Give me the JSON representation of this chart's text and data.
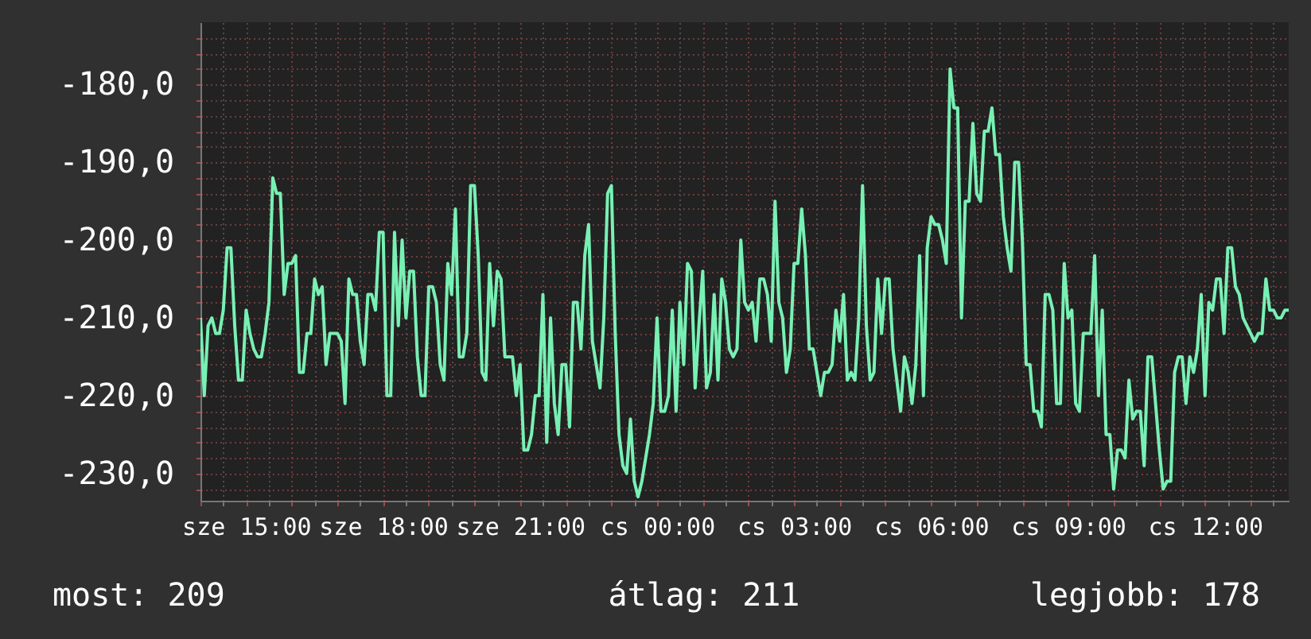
{
  "chart_data": {
    "type": "line",
    "color": "#78f0b4",
    "categories": [
      null,
      null,
      null,
      null,
      null,
      null,
      null,
      null,
      null,
      null,
      null,
      null,
      "sze 15:00",
      null,
      null,
      null,
      null,
      null,
      null,
      null,
      null,
      null,
      null,
      null,
      null,
      null,
      null,
      null,
      null,
      null,
      null,
      null,
      null,
      null,
      null,
      null,
      null,
      null,
      null,
      null,
      null,
      null,
      null,
      null,
      null,
      null,
      null,
      null,
      "sze 18:00",
      null,
      null,
      null,
      null,
      null,
      null,
      null,
      null,
      null,
      null,
      null,
      null,
      null,
      null,
      null,
      null,
      null,
      null,
      null,
      null,
      null,
      null,
      null,
      null,
      null,
      null,
      null,
      null,
      null,
      null,
      null,
      null,
      null,
      null,
      null,
      "sze 21:00",
      null,
      null,
      null,
      null,
      null,
      null,
      null,
      null,
      null,
      null,
      null,
      null,
      null,
      null,
      null,
      null,
      null,
      null,
      null,
      null,
      null,
      null,
      null,
      null,
      null,
      null,
      null,
      null,
      null,
      null,
      null,
      null,
      null,
      null,
      null,
      "cs 00:00",
      null,
      null,
      null,
      null,
      null,
      null,
      null,
      null,
      null,
      null,
      null,
      null,
      null,
      null,
      null,
      null,
      null,
      null,
      null,
      null,
      null,
      null,
      null,
      null,
      null,
      null,
      null,
      null,
      null,
      null,
      null,
      null,
      null,
      null,
      null,
      "cs 03:00",
      null,
      null,
      null,
      null,
      null,
      null,
      null,
      null,
      null,
      null,
      null,
      null,
      null,
      null,
      null,
      null,
      null,
      null,
      null,
      null,
      null,
      null,
      null,
      null,
      null,
      null,
      null,
      null,
      null,
      null,
      null,
      null,
      null,
      null,
      null,
      "cs 06:00",
      null,
      null,
      null,
      null,
      null,
      null,
      null,
      null,
      null,
      null,
      null,
      null,
      null,
      null,
      null,
      null,
      null,
      null,
      null,
      null,
      null,
      null,
      null,
      null,
      null,
      null,
      null,
      null,
      null,
      null,
      null,
      null,
      null,
      null,
      null,
      "cs 09:00",
      null,
      null,
      null,
      null,
      null,
      null,
      null,
      null,
      null,
      null,
      null,
      null,
      null,
      null,
      null,
      null,
      null,
      null,
      null,
      null,
      null,
      null,
      null,
      null,
      null,
      null,
      null,
      null,
      null,
      null,
      null,
      null,
      null,
      null,
      null,
      "cs 12:00",
      null,
      null,
      null,
      null,
      null,
      null,
      null,
      null,
      null,
      null,
      null,
      null,
      null,
      null,
      null,
      null,
      null,
      null,
      null,
      null,
      null,
      null
    ],
    "values": [
      -210,
      -220,
      -211,
      -210,
      -212,
      -212,
      -209,
      -201,
      -201,
      -211,
      -218,
      -218,
      -209,
      -212,
      -214,
      -215,
      -215,
      -212,
      -208,
      -192,
      -194,
      -194,
      -207,
      -203,
      -203,
      -202,
      -217,
      -217,
      -212,
      -212,
      -205,
      -207,
      -206,
      -216,
      -212,
      -212,
      -212,
      -213,
      -221,
      -205,
      -207,
      -207,
      -213,
      -216,
      -207,
      -207,
      -209,
      -199,
      -199,
      -220,
      -220,
      -199,
      -211,
      -200,
      -210,
      -204,
      -204,
      -215,
      -220,
      -220,
      -206,
      -206,
      -208,
      -216,
      -218,
      -203,
      -207,
      -196,
      -215,
      -215,
      -212,
      -193,
      -193,
      -202,
      -217,
      -218,
      -203,
      -211,
      -204,
      -205,
      -215,
      -215,
      -215,
      -220,
      -216,
      -227,
      -227,
      -225,
      -220,
      -220,
      -207,
      -226,
      -210,
      -221,
      -225,
      -216,
      -216,
      -224,
      -208,
      -208,
      -214,
      -202,
      -198,
      -213,
      -216,
      -219,
      -210,
      -194,
      -193,
      -212,
      -225,
      -229,
      -230,
      -223,
      -231,
      -233,
      -231,
      -228,
      -225,
      -221,
      -210,
      -222,
      -222,
      -220,
      -209,
      -222,
      -208,
      -216,
      -203,
      -204,
      -219,
      -211,
      -204,
      -219,
      -217,
      -207,
      -218,
      -205,
      -208,
      -214,
      -215,
      -214,
      -200,
      -208,
      -209,
      -208,
      -213,
      -205,
      -205,
      -207,
      -213,
      -195,
      -208,
      -210,
      -217,
      -214,
      -203,
      -203,
      -196,
      -202,
      -214,
      -214,
      -217,
      -220,
      -217,
      -217,
      -216,
      -209,
      -213,
      -207,
      -218,
      -217,
      -218,
      -210,
      -193,
      -211,
      -218,
      -217,
      -205,
      -212,
      -205,
      -205,
      -214,
      -218,
      -222,
      -215,
      -217,
      -221,
      -216,
      -202,
      -220,
      -201,
      -197,
      -198,
      -198,
      -200,
      -203,
      -178,
      -183,
      -183,
      -210,
      -195,
      -195,
      -185,
      -194,
      -195,
      -186,
      -186,
      -183,
      -189,
      -189,
      -197,
      -201,
      -204,
      -190,
      -190,
      -200,
      -216,
      -216,
      -222,
      -222,
      -224,
      -207,
      -207,
      -209,
      -221,
      -221,
      -203,
      -210,
      -209,
      -221,
      -222,
      -212,
      -212,
      -212,
      -202,
      -220,
      -209,
      -225,
      -225,
      -232,
      -227,
      -227,
      -228,
      -218,
      -223,
      -222,
      -222,
      -229,
      -215,
      -215,
      -221,
      -227,
      -232,
      -231,
      -231,
      -217,
      -215,
      -215,
      -221,
      -215,
      -217,
      -214,
      -207,
      -220,
      -208,
      -209,
      -205,
      -205,
      -212,
      -201,
      -201,
      -206,
      -207,
      -210,
      -211,
      -212,
      -213,
      -212,
      -212,
      -205,
      -209,
      -209,
      -210,
      -210,
      -209,
      -209
    ],
    "ylim": [
      -233.5,
      -172
    ],
    "yticks": [
      {
        "value": -232,
        "label": null
      },
      {
        "value": -230,
        "label": "-230,0"
      },
      {
        "value": -228,
        "label": null
      },
      {
        "value": -226,
        "label": null
      },
      {
        "value": -224,
        "label": null
      },
      {
        "value": -222,
        "label": null
      },
      {
        "value": -220,
        "label": "-220,0"
      },
      {
        "value": -218,
        "label": null
      },
      {
        "value": -216,
        "label": null
      },
      {
        "value": -214,
        "label": null
      },
      {
        "value": -212,
        "label": null
      },
      {
        "value": -210,
        "label": "-210,0"
      },
      {
        "value": -208,
        "label": null
      },
      {
        "value": -206,
        "label": null
      },
      {
        "value": -204,
        "label": null
      },
      {
        "value": -202,
        "label": null
      },
      {
        "value": -200,
        "label": "-200,0"
      },
      {
        "value": -198,
        "label": null
      },
      {
        "value": -196,
        "label": null
      },
      {
        "value": -194,
        "label": null
      },
      {
        "value": -192,
        "label": null
      },
      {
        "value": -190,
        "label": "-190,0"
      },
      {
        "value": -188,
        "label": null
      },
      {
        "value": -186,
        "label": null
      },
      {
        "value": -184,
        "label": null
      },
      {
        "value": -182,
        "label": null
      },
      {
        "value": -180,
        "label": "-180,0"
      },
      {
        "value": -178,
        "label": null
      },
      {
        "value": -176,
        "label": null
      },
      {
        "value": -174,
        "label": null
      }
    ],
    "grid": true,
    "annotations": [
      "most: 209",
      "átlag: 211",
      "legjobb: 178"
    ]
  }
}
